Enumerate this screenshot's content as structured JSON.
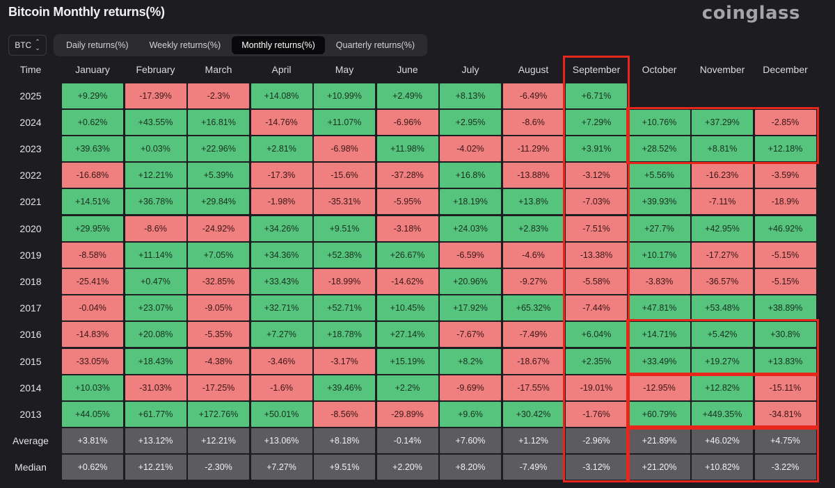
{
  "header": {
    "title": "Bitcoin Monthly returns(%)",
    "brand": "coinglass"
  },
  "asset_select": {
    "value": "BTC"
  },
  "tabs": [
    {
      "label": "Daily returns(%)",
      "active": false
    },
    {
      "label": "Weekly returns(%)",
      "active": false
    },
    {
      "label": "Monthly returns(%)",
      "active": true
    },
    {
      "label": "Quarterly returns(%)",
      "active": false
    }
  ],
  "table": {
    "time_header": "Time",
    "months": [
      "January",
      "February",
      "March",
      "April",
      "May",
      "June",
      "July",
      "August",
      "September",
      "October",
      "November",
      "December"
    ],
    "rows": [
      {
        "label": "2025",
        "values": [
          "+9.29%",
          "-17.39%",
          "-2.3%",
          "+14.08%",
          "+10.99%",
          "+2.49%",
          "+8.13%",
          "-6.49%",
          "+6.71%",
          "",
          "",
          ""
        ]
      },
      {
        "label": "2024",
        "values": [
          "+0.62%",
          "+43.55%",
          "+16.81%",
          "-14.76%",
          "+11.07%",
          "-6.96%",
          "+2.95%",
          "-8.6%",
          "+7.29%",
          "+10.76%",
          "+37.29%",
          "-2.85%"
        ]
      },
      {
        "label": "2023",
        "values": [
          "+39.63%",
          "+0.03%",
          "+22.96%",
          "+2.81%",
          "-6.98%",
          "+11.98%",
          "-4.02%",
          "-11.29%",
          "+3.91%",
          "+28.52%",
          "+8.81%",
          "+12.18%"
        ]
      },
      {
        "label": "2022",
        "values": [
          "-16.68%",
          "+12.21%",
          "+5.39%",
          "-17.3%",
          "-15.6%",
          "-37.28%",
          "+16.8%",
          "-13.88%",
          "-3.12%",
          "+5.56%",
          "-16.23%",
          "-3.59%"
        ]
      },
      {
        "label": "2021",
        "values": [
          "+14.51%",
          "+36.78%",
          "+29.84%",
          "-1.98%",
          "-35.31%",
          "-5.95%",
          "+18.19%",
          "+13.8%",
          "-7.03%",
          "+39.93%",
          "-7.11%",
          "-18.9%"
        ]
      },
      {
        "label": "2020",
        "values": [
          "+29.95%",
          "-8.6%",
          "-24.92%",
          "+34.26%",
          "+9.51%",
          "-3.18%",
          "+24.03%",
          "+2.83%",
          "-7.51%",
          "+27.7%",
          "+42.95%",
          "+46.92%"
        ]
      },
      {
        "label": "2019",
        "values": [
          "-8.58%",
          "+11.14%",
          "+7.05%",
          "+34.36%",
          "+52.38%",
          "+26.67%",
          "-6.59%",
          "-4.6%",
          "-13.38%",
          "+10.17%",
          "-17.27%",
          "-5.15%"
        ]
      },
      {
        "label": "2018",
        "values": [
          "-25.41%",
          "+0.47%",
          "-32.85%",
          "+33.43%",
          "-18.99%",
          "-14.62%",
          "+20.96%",
          "-9.27%",
          "-5.58%",
          "-3.83%",
          "-36.57%",
          "-5.15%"
        ]
      },
      {
        "label": "2017",
        "values": [
          "-0.04%",
          "+23.07%",
          "-9.05%",
          "+32.71%",
          "+52.71%",
          "+10.45%",
          "+17.92%",
          "+65.32%",
          "-7.44%",
          "+47.81%",
          "+53.48%",
          "+38.89%"
        ]
      },
      {
        "label": "2016",
        "values": [
          "-14.83%",
          "+20.08%",
          "-5.35%",
          "+7.27%",
          "+18.78%",
          "+27.14%",
          "-7.67%",
          "-7.49%",
          "+6.04%",
          "+14.71%",
          "+5.42%",
          "+30.8%"
        ]
      },
      {
        "label": "2015",
        "values": [
          "-33.05%",
          "+18.43%",
          "-4.38%",
          "-3.46%",
          "-3.17%",
          "+15.19%",
          "+8.2%",
          "-18.67%",
          "+2.35%",
          "+33.49%",
          "+19.27%",
          "+13.83%"
        ]
      },
      {
        "label": "2014",
        "values": [
          "+10.03%",
          "-31.03%",
          "-17.25%",
          "-1.6%",
          "+39.46%",
          "+2.2%",
          "-9.69%",
          "-17.55%",
          "-19.01%",
          "-12.95%",
          "+12.82%",
          "-15.11%"
        ]
      },
      {
        "label": "2013",
        "values": [
          "+44.05%",
          "+61.77%",
          "+172.76%",
          "+50.01%",
          "-8.56%",
          "-29.89%",
          "+9.6%",
          "+30.42%",
          "-1.76%",
          "+60.79%",
          "+449.35%",
          "-34.81%"
        ]
      }
    ],
    "summary_rows": [
      {
        "label": "Average",
        "values": [
          "+3.81%",
          "+13.12%",
          "+12.21%",
          "+13.06%",
          "+8.18%",
          "-0.14%",
          "+7.60%",
          "+1.12%",
          "-2.96%",
          "+21.89%",
          "+46.02%",
          "+4.75%"
        ]
      },
      {
        "label": "Median",
        "values": [
          "+0.62%",
          "+12.21%",
          "-2.30%",
          "+7.27%",
          "+9.51%",
          "+2.20%",
          "+8.20%",
          "-7.49%",
          "-3.12%",
          "+21.20%",
          "+10.82%",
          "-3.22%"
        ]
      }
    ]
  },
  "colors": {
    "positive": "#57c47e",
    "negative": "#f07f7f",
    "summary": "#5c5c60",
    "highlight": "#e8261c",
    "background": "#1d1d21"
  }
}
